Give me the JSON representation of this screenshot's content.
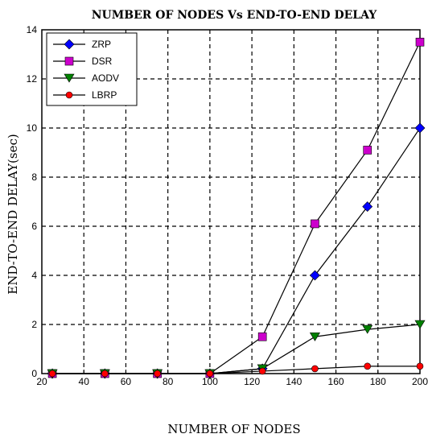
{
  "chart_data": {
    "type": "line",
    "title": "NUMBER OF NODES Vs END-TO-END DELAY",
    "xlabel": "NUMBER OF NODES",
    "ylabel": "END-TO-END DELAY(sec)",
    "x": [
      25,
      50,
      75,
      100,
      125,
      150,
      175,
      200
    ],
    "xlim": [
      20,
      200
    ],
    "ylim": [
      0,
      14
    ],
    "xticks": [
      "20",
      "40",
      "60",
      "80",
      "100",
      "120",
      "140",
      "160",
      "180",
      "200"
    ],
    "yticks": [
      "0",
      "2",
      "4",
      "6",
      "8",
      "10",
      "12",
      "14"
    ],
    "grid": true,
    "legend_position": "top-left",
    "series": [
      {
        "name": "ZRP",
        "color": "#0000ff",
        "marker": "diamond",
        "values": [
          0,
          0,
          0,
          0,
          0.2,
          4.0,
          6.8,
          10.0
        ]
      },
      {
        "name": "DSR",
        "color": "#cc00cc",
        "marker": "square",
        "values": [
          0,
          0,
          0,
          0,
          1.5,
          6.1,
          9.1,
          13.5
        ]
      },
      {
        "name": "AODV",
        "color": "#008000",
        "marker": "triangle",
        "values": [
          0,
          0,
          0,
          0,
          0.2,
          1.5,
          1.8,
          2.0
        ]
      },
      {
        "name": "LBRP",
        "color": "#ff0000",
        "marker": "circle",
        "values": [
          0,
          0,
          0,
          0,
          0.1,
          0.2,
          0.3,
          0.3
        ]
      }
    ]
  }
}
